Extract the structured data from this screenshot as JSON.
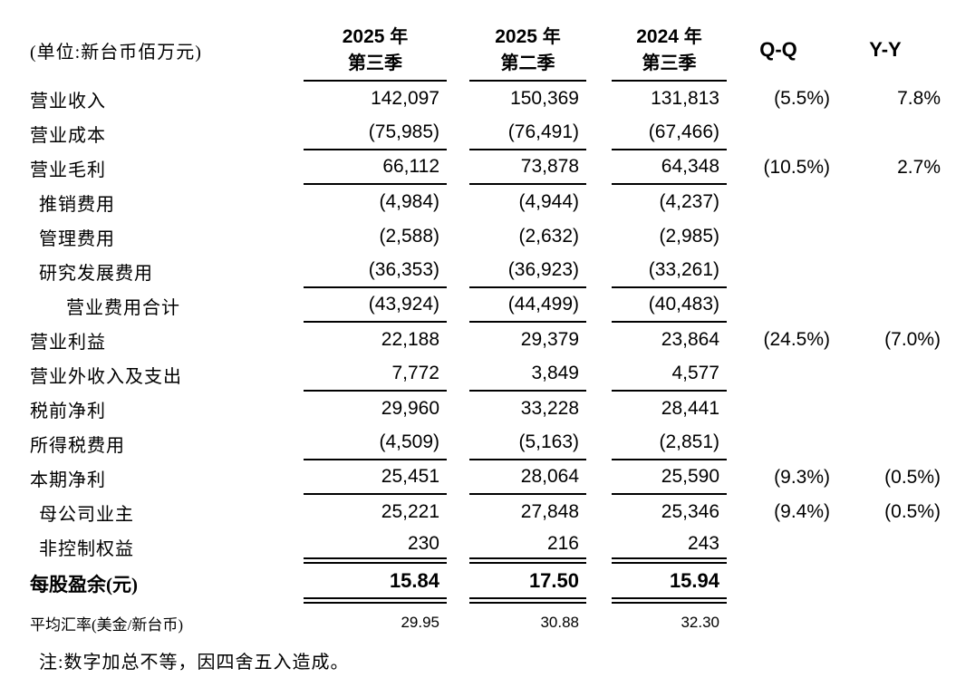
{
  "unit_label": "(单位:新台币佰万元)",
  "header": {
    "col1": {
      "year": "2025",
      "year_suffix": "年",
      "quarter": "第三季"
    },
    "col2": {
      "year": "2025",
      "year_suffix": "年",
      "quarter": "第二季"
    },
    "col3": {
      "year": "2024",
      "year_suffix": "年",
      "quarter": "第三季"
    },
    "qq_label": "Q-Q",
    "yy_label": "Y-Y"
  },
  "rows": [
    {
      "label": "营业收入",
      "indent": 0,
      "v1": "142,097",
      "v2": "150,369",
      "v3": "131,813",
      "qq": "(5.5%)",
      "yy": "7.8%",
      "rule": "none",
      "style": "normal"
    },
    {
      "label": "营业成本",
      "indent": 0,
      "v1": "(75,985)",
      "v2": "(76,491)",
      "v3": "(67,466)",
      "qq": "",
      "yy": "",
      "rule": "single",
      "style": "normal"
    },
    {
      "label": "营业毛利",
      "indent": 0,
      "v1": "66,112",
      "v2": "73,878",
      "v3": "64,348",
      "qq": "(10.5%)",
      "yy": "2.7%",
      "rule": "single",
      "style": "normal"
    },
    {
      "label": "推销费用",
      "indent": 1,
      "v1": "(4,984)",
      "v2": "(4,944)",
      "v3": "(4,237)",
      "qq": "",
      "yy": "",
      "rule": "none",
      "style": "normal"
    },
    {
      "label": "管理费用",
      "indent": 1,
      "v1": "(2,588)",
      "v2": "(2,632)",
      "v3": "(2,985)",
      "qq": "",
      "yy": "",
      "rule": "none",
      "style": "normal"
    },
    {
      "label": "研究发展费用",
      "indent": 1,
      "v1": "(36,353)",
      "v2": "(36,923)",
      "v3": "(33,261)",
      "qq": "",
      "yy": "",
      "rule": "single",
      "style": "normal"
    },
    {
      "label": "营业费用合计",
      "indent": 2,
      "v1": "(43,924)",
      "v2": "(44,499)",
      "v3": "(40,483)",
      "qq": "",
      "yy": "",
      "rule": "single",
      "style": "normal"
    },
    {
      "label": "营业利益",
      "indent": 0,
      "v1": "22,188",
      "v2": "29,379",
      "v3": "23,864",
      "qq": "(24.5%)",
      "yy": "(7.0%)",
      "rule": "none",
      "style": "normal"
    },
    {
      "label": "营业外收入及支出",
      "indent": 0,
      "v1": "7,772",
      "v2": "3,849",
      "v3": "4,577",
      "qq": "",
      "yy": "",
      "rule": "single",
      "style": "normal"
    },
    {
      "label": "税前净利",
      "indent": 0,
      "v1": "29,960",
      "v2": "33,228",
      "v3": "28,441",
      "qq": "",
      "yy": "",
      "rule": "none",
      "style": "normal"
    },
    {
      "label": "所得税费用",
      "indent": 0,
      "v1": "(4,509)",
      "v2": "(5,163)",
      "v3": "(2,851)",
      "qq": "",
      "yy": "",
      "rule": "single",
      "style": "normal"
    },
    {
      "label": "本期净利",
      "indent": 0,
      "v1": "25,451",
      "v2": "28,064",
      "v3": "25,590",
      "qq": "(9.3%)",
      "yy": "(0.5%)",
      "rule": "single",
      "style": "normal"
    },
    {
      "label": "母公司业主",
      "indent": 1,
      "v1": "25,221",
      "v2": "27,848",
      "v3": "25,346",
      "qq": "(9.4%)",
      "yy": "(0.5%)",
      "rule": "none",
      "style": "normal"
    },
    {
      "label": "非控制权益",
      "indent": 1,
      "v1": "230",
      "v2": "216",
      "v3": "243",
      "qq": "",
      "yy": "",
      "rule": "double",
      "style": "normal"
    },
    {
      "label": "每股盈余(元)",
      "indent": 0,
      "v1": "15.84",
      "v2": "17.50",
      "v3": "15.94",
      "qq": "",
      "yy": "",
      "rule": "double",
      "style": "eps"
    },
    {
      "label": "平均汇率(美金/新台币)",
      "indent": 0,
      "v1": "29.95",
      "v2": "30.88",
      "v3": "32.30",
      "qq": "",
      "yy": "",
      "rule": "none",
      "style": "fx"
    }
  ],
  "note": "注:数字加总不等，因四舍五入造成。"
}
